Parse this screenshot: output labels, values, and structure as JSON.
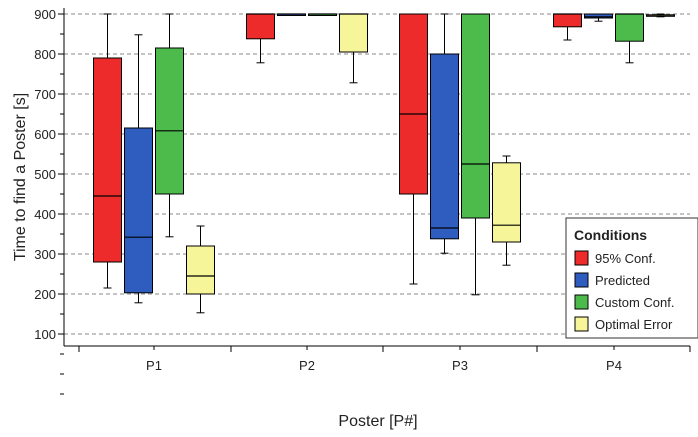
{
  "chart_data": {
    "type": "boxplot",
    "title": "",
    "xlabel": "Poster [P#]",
    "ylabel": "Time to find a Poster [s]",
    "ylim": [
      -50,
      900
    ],
    "yticks": [
      100,
      200,
      300,
      400,
      500,
      600,
      700,
      800,
      900
    ],
    "grid": "horizontal-dashed",
    "categories": [
      "P1",
      "P2",
      "P3",
      "P4"
    ],
    "legend": {
      "title": "Conditions",
      "placement": "right"
    },
    "series": [
      {
        "name": "95% Conf.",
        "color": "#ee2b2b",
        "boxes": [
          {
            "min": 215,
            "q1": 280,
            "median": 445,
            "q3": 790,
            "max": 900
          },
          {
            "min": 778,
            "q1": 838,
            "median": 900,
            "q3": 900,
            "max": 900
          },
          {
            "min": 225,
            "q1": 450,
            "median": 650,
            "q3": 900,
            "max": 900
          },
          {
            "min": 835,
            "q1": 868,
            "median": 900,
            "q3": 900,
            "max": 900
          }
        ]
      },
      {
        "name": "Predicted",
        "color": "#2f5dbf",
        "boxes": [
          {
            "min": 178,
            "q1": 203,
            "median": 342,
            "q3": 615,
            "max": 848
          },
          {
            "min": 900,
            "q1": 900,
            "median": 900,
            "q3": 900,
            "max": 900
          },
          {
            "min": 302,
            "q1": 338,
            "median": 365,
            "q3": 800,
            "max": 900
          },
          {
            "min": 882,
            "q1": 890,
            "median": 893,
            "q3": 900,
            "max": 900
          }
        ]
      },
      {
        "name": "Custom Conf.",
        "color": "#4cbb4c",
        "boxes": [
          {
            "min": 343,
            "q1": 450,
            "median": 608,
            "q3": 815,
            "max": 900
          },
          {
            "min": 900,
            "q1": 900,
            "median": 900,
            "q3": 900,
            "max": 900
          },
          {
            "min": 198,
            "q1": 390,
            "median": 525,
            "q3": 900,
            "max": 900
          },
          {
            "min": 778,
            "q1": 832,
            "median": 900,
            "q3": 900,
            "max": 900
          }
        ]
      },
      {
        "name": "Optimal Error",
        "color": "#f7f59a",
        "boxes": [
          {
            "min": 153,
            "q1": 200,
            "median": 245,
            "q3": 320,
            "max": 370
          },
          {
            "min": 728,
            "q1": 805,
            "median": 900,
            "q3": 900,
            "max": 900
          },
          {
            "min": 272,
            "q1": 330,
            "median": 372,
            "q3": 528,
            "max": 545
          },
          {
            "min": 893,
            "q1": 895,
            "median": 897,
            "q3": 898,
            "max": 900
          }
        ]
      }
    ]
  }
}
